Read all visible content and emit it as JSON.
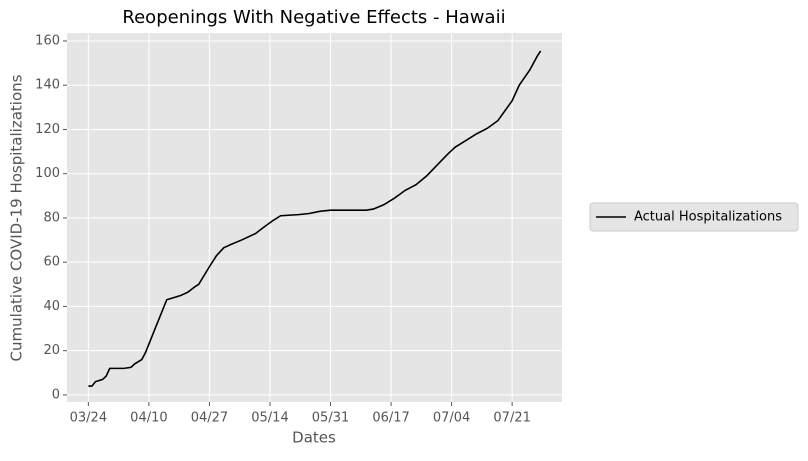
{
  "chart_data": {
    "type": "line",
    "title": "Reopenings With Negative Effects - Hawaii",
    "xlabel": "Dates",
    "ylabel": "Cumulative COVID-19 Hospitalizations",
    "x": [
      "03/24",
      "03/25",
      "03/26",
      "03/28",
      "03/29",
      "03/30",
      "04/01",
      "04/03",
      "04/05",
      "04/06",
      "04/08",
      "04/09",
      "04/10",
      "04/12",
      "04/14",
      "04/15",
      "04/17",
      "04/19",
      "04/21",
      "04/23",
      "04/24",
      "04/27",
      "04/29",
      "05/01",
      "05/03",
      "05/06",
      "05/10",
      "05/12",
      "05/15",
      "05/17",
      "05/22",
      "05/25",
      "05/28",
      "05/31",
      "06/05",
      "06/10",
      "06/12",
      "06/15",
      "06/18",
      "06/21",
      "06/24",
      "06/27",
      "06/30",
      "07/03",
      "07/05",
      "07/08",
      "07/11",
      "07/14",
      "07/17",
      "07/21",
      "07/23",
      "07/26",
      "07/28",
      "07/29"
    ],
    "series": [
      {
        "name": "Actual Hospitalizations",
        "color": "#000000",
        "values": [
          4,
          4,
          6,
          7,
          8.5,
          12,
          12,
          12,
          12.5,
          14,
          16,
          19,
          23,
          31,
          39,
          43,
          44,
          45,
          46.5,
          49,
          50,
          58,
          63,
          66.5,
          68,
          70,
          73,
          75.5,
          79,
          81,
          81.5,
          82,
          83,
          83.5,
          83.5,
          83.5,
          84,
          86,
          89,
          92.5,
          95,
          99,
          104,
          109,
          112,
          115,
          118,
          120.5,
          124,
          133,
          140,
          147,
          153,
          155.5
        ]
      }
    ],
    "xlim": [
      "03/18",
      "08/04"
    ],
    "xticks": [
      "03/24",
      "04/10",
      "04/27",
      "05/14",
      "05/31",
      "06/17",
      "07/04",
      "07/21"
    ],
    "ylim": [
      -3.2,
      163.6
    ],
    "yticks": [
      0,
      20,
      40,
      60,
      80,
      100,
      120,
      140,
      160
    ],
    "grid": true,
    "legend": "outside right"
  }
}
